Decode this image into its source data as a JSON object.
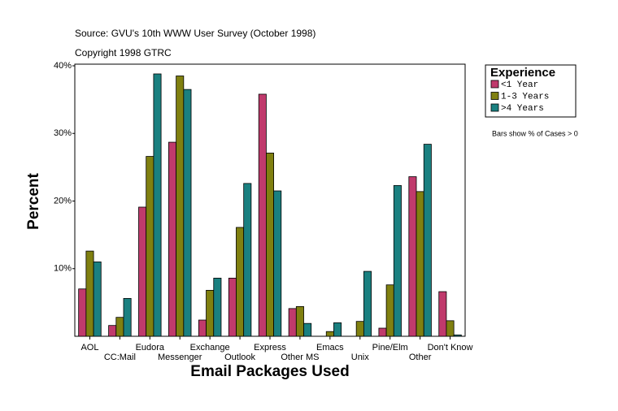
{
  "chart_data": {
    "type": "bar",
    "title": "Source: GVU's 10th WWW User Survey (October 1998)",
    "subtitle": "Copyright 1998 GTRC",
    "x_label": "Email Packages Used",
    "y_label": "Percent",
    "legend_title": "Experience",
    "annotation": "Bars show % of Cases > 0",
    "categories": [
      "AOL",
      "CC:Mail",
      "Eudora",
      "Messenger",
      "Exchange",
      "Outlook",
      "Express",
      "Other MS",
      "Emacs",
      "Unix",
      "Pine/Elm",
      "Other",
      "Don't Know"
    ],
    "series": [
      {
        "name": "<1 Year",
        "color": "#c03a6c",
        "values": [
          7.0,
          1.6,
          19.1,
          28.7,
          2.4,
          8.6,
          35.8,
          4.1,
          0,
          0,
          1.2,
          23.6,
          6.6
        ]
      },
      {
        "name": "1-3 Years",
        "color": "#808010",
        "values": [
          12.6,
          2.8,
          26.6,
          38.5,
          6.8,
          16.1,
          27.1,
          4.4,
          0.7,
          2.2,
          7.6,
          21.4,
          2.3
        ]
      },
      {
        "name": ">4 Years",
        "color": "#1a8080",
        "values": [
          11.0,
          5.6,
          38.8,
          36.5,
          8.6,
          22.6,
          21.5,
          1.9,
          2.0,
          9.6,
          22.3,
          28.4,
          0.2
        ]
      }
    ],
    "ylim": [
      0,
      40
    ],
    "yticks": [
      {
        "value": 10,
        "label": "10%"
      },
      {
        "value": 20,
        "label": "20%"
      },
      {
        "value": 30,
        "label": "30%"
      },
      {
        "value": 40,
        "label": "40%"
      }
    ],
    "legend_position": "right"
  }
}
